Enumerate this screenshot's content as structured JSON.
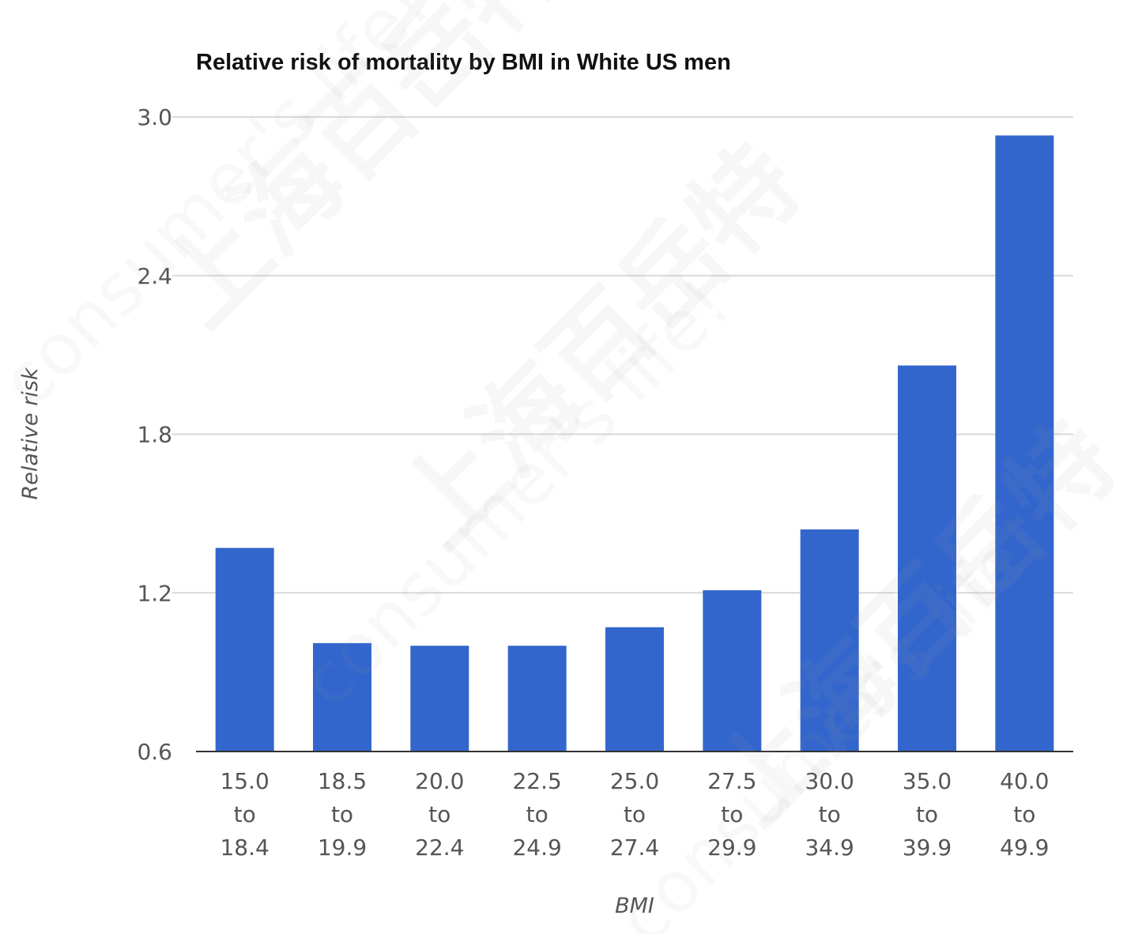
{
  "chart_data": {
    "type": "bar",
    "title": "Relative risk of mortality by BMI in White US men",
    "xlabel": "BMI",
    "ylabel": "Relative risk",
    "categories": [
      [
        "15.0",
        "to",
        "18.4"
      ],
      [
        "18.5",
        "to",
        "19.9"
      ],
      [
        "20.0",
        "to",
        "22.4"
      ],
      [
        "22.5",
        "to",
        "24.9"
      ],
      [
        "25.0",
        "to",
        "27.4"
      ],
      [
        "27.5",
        "to",
        "29.9"
      ],
      [
        "30.0",
        "to",
        "34.9"
      ],
      [
        "35.0",
        "to",
        "39.9"
      ],
      [
        "40.0",
        "to",
        "49.9"
      ]
    ],
    "values": [
      1.37,
      1.01,
      1.0,
      1.0,
      1.07,
      1.21,
      1.44,
      2.06,
      2.93
    ],
    "ylim": [
      0.6,
      3.0
    ],
    "yticks": [
      "0.6",
      "1.2",
      "1.8",
      "2.4",
      "3.0"
    ],
    "grid": true,
    "bar_color": "#3366cc"
  }
}
